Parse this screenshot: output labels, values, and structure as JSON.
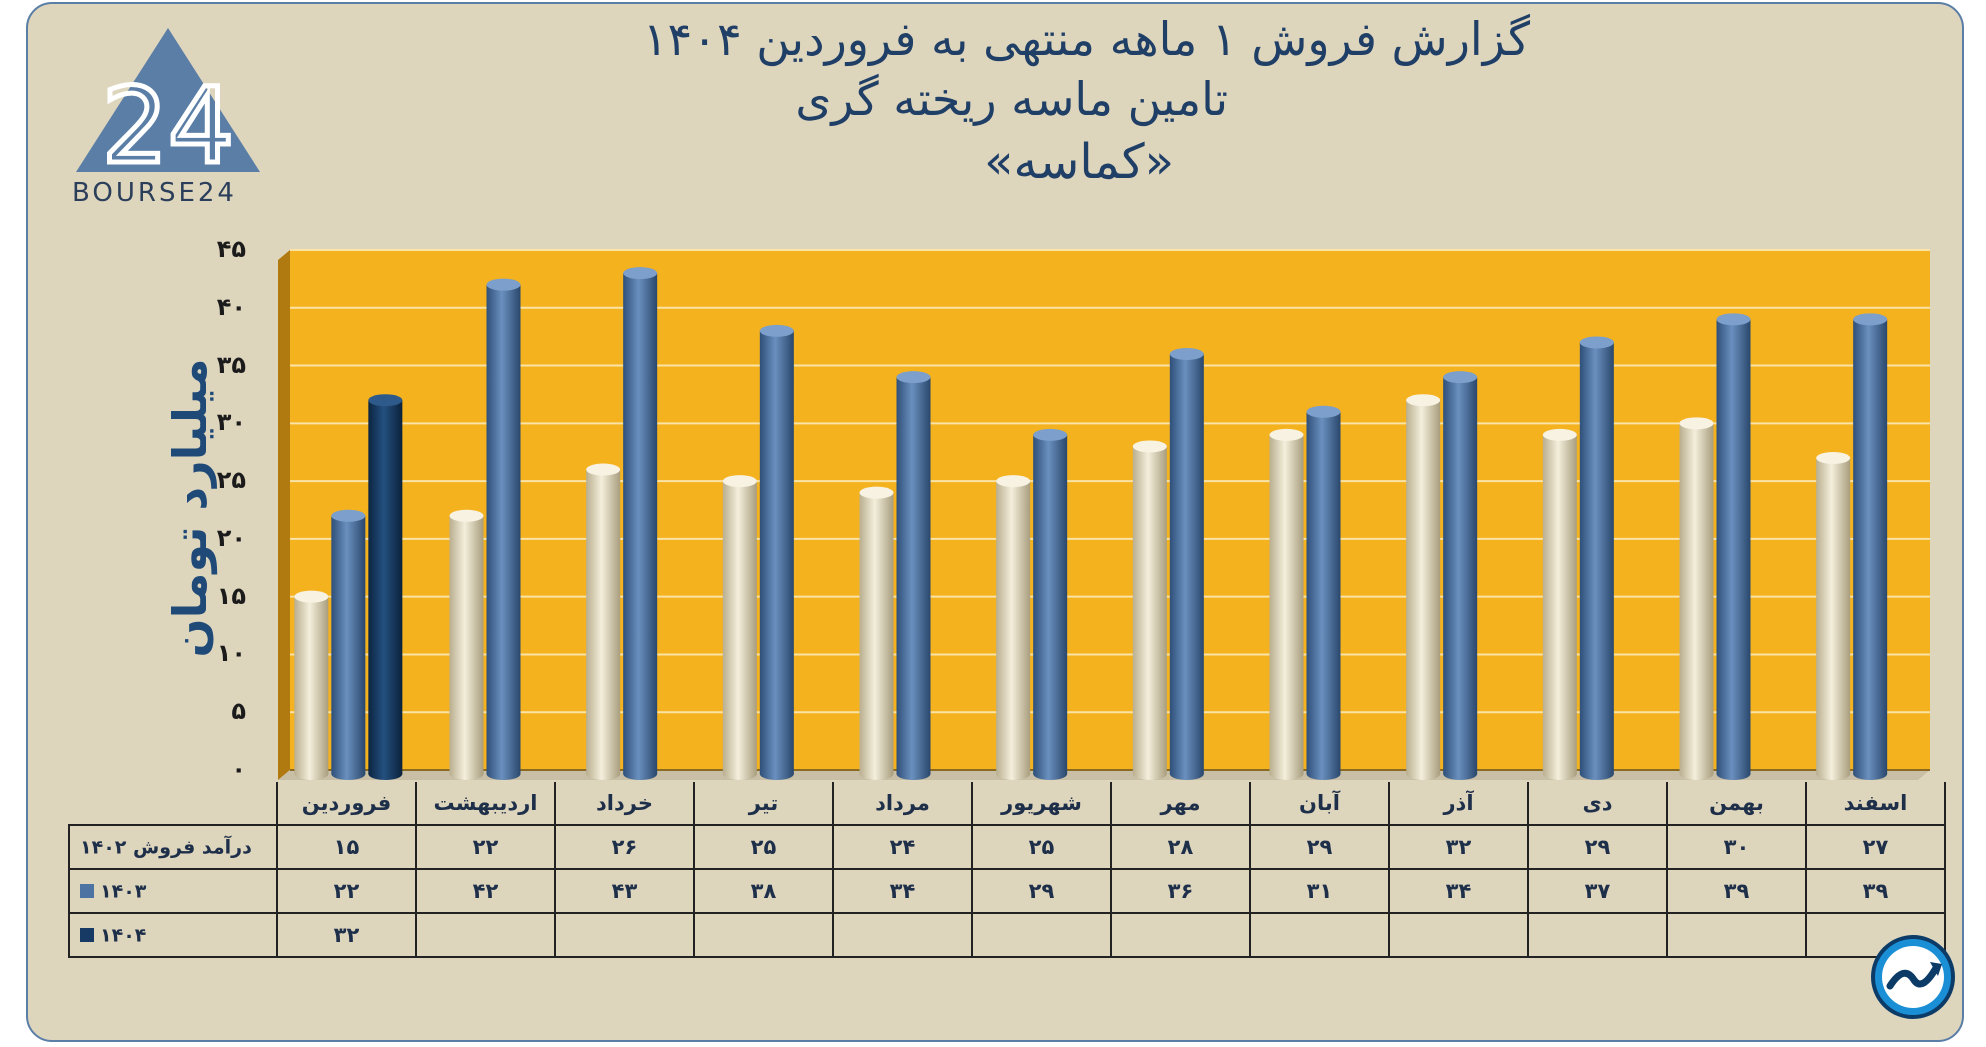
{
  "header": {
    "line1": "گزارش  فروش ۱ ماهه منتهی به فروردین ۱۴۰۴",
    "line2": "تامین ماسه ریخته گری",
    "line3": "«کماسه»"
  },
  "logo": {
    "text": "BOURSE24",
    "mark": "24"
  },
  "corner_icon": "trend-arrow-icon",
  "colors": {
    "background": "#ded5bd",
    "plot_area": "#f5b21f",
    "series_1402": "#e4dcc2",
    "series_1403": "#4d73a3",
    "series_1404": "#163a64",
    "title_text": "#1f3f66"
  },
  "chart_data": {
    "type": "bar",
    "style": "3d-cylinder",
    "categories": [
      "فروردین",
      "اردیبهشت",
      "خرداد",
      "تیر",
      "مرداد",
      "شهریور",
      "مهر",
      "آبان",
      "آذر",
      "دی",
      "بهمن",
      "اسفند"
    ],
    "series": [
      {
        "name": "درآمد فروش ۱۴۰۲",
        "key": "s1402",
        "values": [
          15,
          22,
          26,
          25,
          24,
          25,
          28,
          29,
          32,
          29,
          30,
          27
        ]
      },
      {
        "name": "۱۴۰۳",
        "key": "s1403",
        "values": [
          22,
          42,
          43,
          38,
          34,
          29,
          36,
          31,
          34,
          37,
          39,
          39
        ]
      },
      {
        "name": "۱۴۰۴",
        "key": "s1404",
        "values": [
          32,
          null,
          null,
          null,
          null,
          null,
          null,
          null,
          null,
          null,
          null,
          null
        ]
      }
    ],
    "ylabel": "میلیارد تومان",
    "ylim": [
      0,
      45
    ],
    "yticks": [
      0,
      5,
      10,
      15,
      20,
      25,
      30,
      35,
      40,
      45
    ],
    "ytick_labels": [
      "۰",
      "۵",
      "۱۰",
      "۱۵",
      "۲۰",
      "۲۵",
      "۳۰",
      "۳۵",
      "۴۰",
      "۴۵"
    ],
    "grid": true,
    "legend": "data-table-below"
  },
  "table": {
    "categories": [
      "فروردین",
      "اردیبهشت",
      "خرداد",
      "تیر",
      "مرداد",
      "شهریور",
      "مهر",
      "آبان",
      "آذر",
      "دی",
      "بهمن",
      "اسفند"
    ],
    "rows": [
      {
        "label": "درآمد فروش ۱۴۰۲",
        "swatch": "",
        "cells": [
          "۱۵",
          "۲۲",
          "۲۶",
          "۲۵",
          "۲۴",
          "۲۵",
          "۲۸",
          "۲۹",
          "۳۲",
          "۲۹",
          "۳۰",
          "۲۷"
        ]
      },
      {
        "label": "۱۴۰۳",
        "swatch": "#4d73a3",
        "cells": [
          "۲۲",
          "۴۲",
          "۴۳",
          "۳۸",
          "۳۴",
          "۲۹",
          "۳۶",
          "۳۱",
          "۳۴",
          "۳۷",
          "۳۹",
          "۳۹"
        ]
      },
      {
        "label": "۱۴۰۴",
        "swatch": "#163a64",
        "cells": [
          "۳۲",
          "",
          "",
          "",
          "",
          "",
          "",
          "",
          "",
          "",
          "",
          ""
        ]
      }
    ]
  }
}
